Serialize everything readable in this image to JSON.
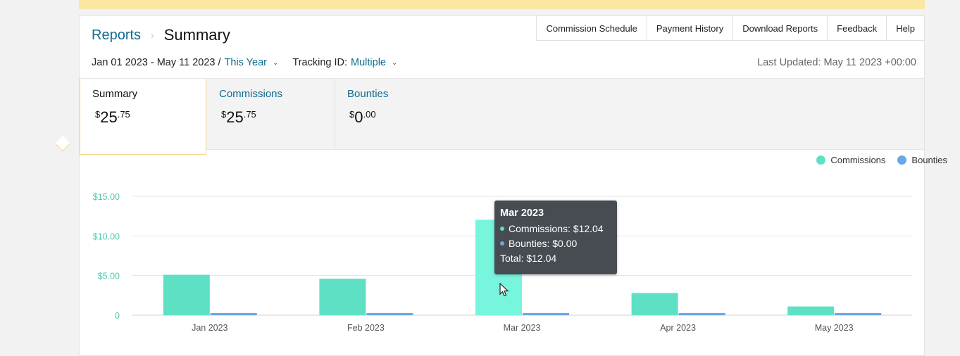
{
  "breadcrumb": {
    "parent": "Reports",
    "separator": "›",
    "current": "Summary"
  },
  "toolbar": [
    "Commission Schedule",
    "Payment History",
    "Download Reports",
    "Feedback",
    "Help"
  ],
  "filters": {
    "date_range": "Jan 01 2023 - May 11 2023 /",
    "period": "This Year",
    "tracking_label": "Tracking ID:",
    "tracking_value": "Multiple"
  },
  "last_updated": "Last Updated: May 11 2023 +00:00",
  "tabs": [
    {
      "label": "Summary",
      "currency": "$",
      "whole": "25",
      "cents": ".75"
    },
    {
      "label": "Commissions",
      "currency": "$",
      "whole": "25",
      "cents": ".75"
    },
    {
      "label": "Bounties",
      "currency": "$",
      "whole": "0",
      "cents": ".00"
    }
  ],
  "tooltip": {
    "title": "Mar 2023",
    "commissions": "Commissions: $12.04",
    "bounties": "Bounties: $0.00",
    "total": "Total: $12.04"
  },
  "colors": {
    "commissions": "#5de0c4",
    "commissions_hover": "#78f5dd",
    "bounties": "#6ca6e6",
    "axis_text": "#52c9ae",
    "grid": "#e4e4e4"
  },
  "chart_data": {
    "type": "bar",
    "categories": [
      "Jan 2023",
      "Feb 2023",
      "Mar 2023",
      "Apr 2023",
      "May 2023"
    ],
    "series": [
      {
        "name": "Commissions",
        "values": [
          5.1,
          4.6,
          12.04,
          2.8,
          1.1
        ]
      },
      {
        "name": "Bounties",
        "values": [
          0,
          0,
          0,
          0,
          0
        ]
      }
    ],
    "yticks": [
      "$15.00",
      "$10.00",
      "$5.00",
      "0"
    ],
    "ylim": [
      0,
      15
    ],
    "grid": true,
    "legend": "top-right",
    "highlighted": "Mar 2023"
  }
}
